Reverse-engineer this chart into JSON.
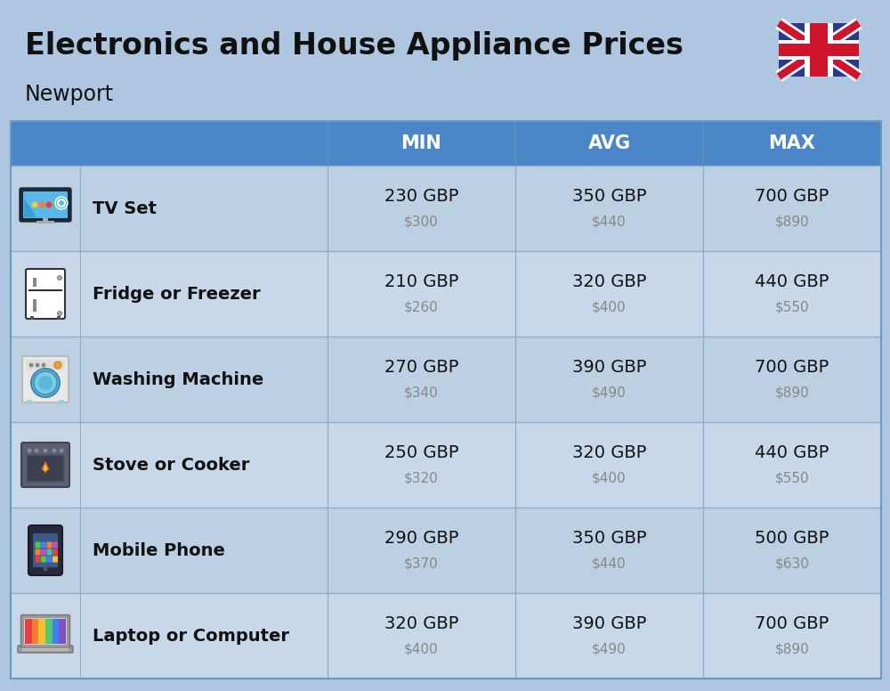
{
  "title": "Electronics and House Appliance Prices",
  "subtitle": "Newport",
  "background_color": "#aec6df",
  "header_bg_color": "#4a86c8",
  "header_text_color": "#ffffff",
  "divider_color": "#7aaad0",
  "table_border_color": "#6a9ac0",
  "columns": [
    "MIN",
    "AVG",
    "MAX"
  ],
  "items": [
    {
      "name": "TV Set",
      "min_gbp": "230 GBP",
      "min_usd": "$300",
      "avg_gbp": "350 GBP",
      "avg_usd": "$440",
      "max_gbp": "700 GBP",
      "max_usd": "$890"
    },
    {
      "name": "Fridge or Freezer",
      "min_gbp": "210 GBP",
      "min_usd": "$260",
      "avg_gbp": "320 GBP",
      "avg_usd": "$400",
      "max_gbp": "440 GBP",
      "max_usd": "$550"
    },
    {
      "name": "Washing Machine",
      "min_gbp": "270 GBP",
      "min_usd": "$340",
      "avg_gbp": "390 GBP",
      "avg_usd": "$490",
      "max_gbp": "700 GBP",
      "max_usd": "$890"
    },
    {
      "name": "Stove or Cooker",
      "min_gbp": "250 GBP",
      "min_usd": "$320",
      "avg_gbp": "320 GBP",
      "avg_usd": "$400",
      "max_gbp": "440 GBP",
      "max_usd": "$550"
    },
    {
      "name": "Mobile Phone",
      "min_gbp": "290 GBP",
      "min_usd": "$370",
      "avg_gbp": "350 GBP",
      "avg_usd": "$440",
      "max_gbp": "500 GBP",
      "max_usd": "$630"
    },
    {
      "name": "Laptop or Computer",
      "min_gbp": "320 GBP",
      "min_usd": "$400",
      "avg_gbp": "390 GBP",
      "avg_usd": "$490",
      "max_gbp": "700 GBP",
      "max_usd": "$890"
    }
  ],
  "item_name_fontsize": 14,
  "value_gbp_fontsize": 14,
  "value_usd_fontsize": 11,
  "header_fontsize": 15,
  "title_fontsize": 24,
  "subtitle_fontsize": 17
}
